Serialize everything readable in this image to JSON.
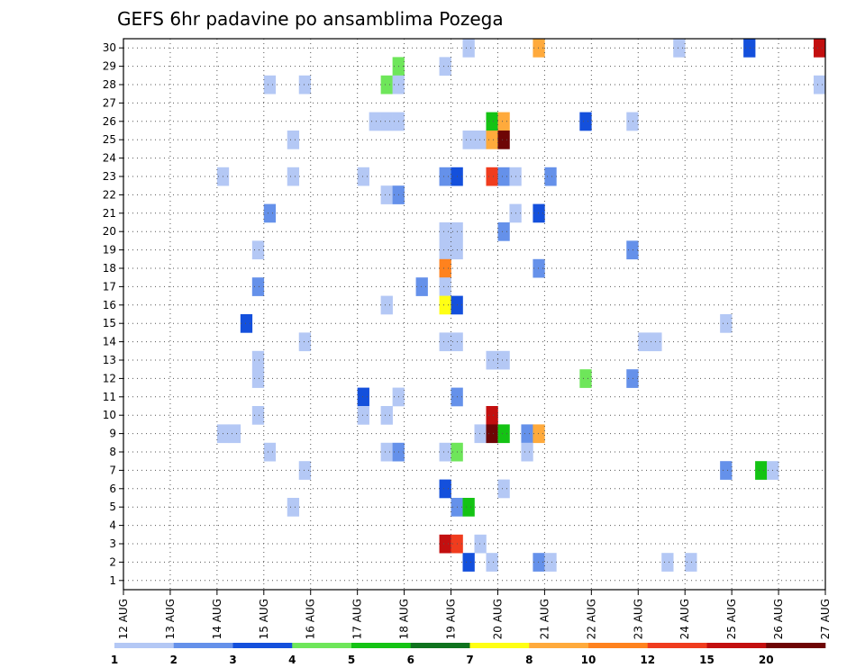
{
  "chart_data": {
    "type": "heatmap",
    "title": "GEFS 6hr padavine po ansamblima Pozega",
    "x_tick_labels": [
      "12 AUG",
      "13 AUG",
      "14 AUG",
      "15 AUG",
      "16 AUG",
      "17 AUG",
      "18 AUG",
      "19 AUG",
      "20 AUG",
      "21 AUG",
      "22 AUG",
      "23 AUG",
      "24 AUG",
      "25 AUG",
      "26 AUG",
      "27 AUG"
    ],
    "y_tick_labels": [
      "1",
      "2",
      "3",
      "4",
      "5",
      "6",
      "7",
      "8",
      "9",
      "10",
      "11",
      "12",
      "13",
      "14",
      "15",
      "16",
      "17",
      "18",
      "19",
      "20",
      "21",
      "22",
      "23",
      "24",
      "25",
      "26",
      "27",
      "28",
      "29",
      "30"
    ],
    "xlim_days": [
      0,
      15
    ],
    "ylim": [
      0.5,
      30.5
    ],
    "grid": true,
    "colorbar": {
      "labels": [
        "1",
        "2",
        "3",
        "4",
        "5",
        "6",
        "7",
        "8",
        "10",
        "12",
        "15",
        "20"
      ],
      "colors": [
        "#b4c8f5",
        "#6591ea",
        "#1450dc",
        "#6ee65a",
        "#14c314",
        "#0f731e",
        "#ffff14",
        "#ffaa3c",
        "#ff821e",
        "#f03c1e",
        "#c30f0f",
        "#6e0505"
      ]
    },
    "cells": [
      [
        7.25,
        30,
        0
      ],
      [
        8.75,
        30,
        7
      ],
      [
        11.75,
        30,
        0
      ],
      [
        13.25,
        30,
        2
      ],
      [
        14.75,
        30,
        10
      ],
      [
        5.75,
        29,
        3
      ],
      [
        6.75,
        29,
        0
      ],
      [
        3.0,
        28,
        0
      ],
      [
        3.75,
        28,
        0
      ],
      [
        5.5,
        28,
        3
      ],
      [
        5.75,
        28,
        0
      ],
      [
        14.75,
        28,
        0
      ],
      [
        5.25,
        26,
        0
      ],
      [
        5.5,
        26,
        0
      ],
      [
        5.75,
        26,
        0
      ],
      [
        7.75,
        26,
        4
      ],
      [
        8.0,
        26,
        7
      ],
      [
        9.75,
        26,
        2
      ],
      [
        10.75,
        26,
        0
      ],
      [
        3.5,
        25,
        0
      ],
      [
        7.25,
        25,
        0
      ],
      [
        7.5,
        25,
        0
      ],
      [
        7.75,
        25,
        7
      ],
      [
        8.0,
        25,
        11
      ],
      [
        2.0,
        23,
        0
      ],
      [
        3.5,
        23,
        0
      ],
      [
        5.0,
        23,
        0
      ],
      [
        6.75,
        23,
        1
      ],
      [
        7.0,
        23,
        2
      ],
      [
        7.75,
        23,
        9
      ],
      [
        8.0,
        23,
        1
      ],
      [
        8.25,
        23,
        0
      ],
      [
        9.0,
        23,
        1
      ],
      [
        5.5,
        22,
        0
      ],
      [
        5.75,
        22,
        1
      ],
      [
        3.0,
        21,
        1
      ],
      [
        8.25,
        21,
        0
      ],
      [
        8.75,
        21,
        2
      ],
      [
        6.75,
        20,
        0
      ],
      [
        7.0,
        20,
        0
      ],
      [
        8.0,
        20,
        1
      ],
      [
        6.75,
        19,
        0
      ],
      [
        7.0,
        19,
        0
      ],
      [
        2.75,
        19,
        0
      ],
      [
        10.75,
        19,
        1
      ],
      [
        6.75,
        18,
        8
      ],
      [
        8.75,
        18,
        1
      ],
      [
        2.75,
        17,
        1
      ],
      [
        6.25,
        17,
        1
      ],
      [
        6.75,
        17,
        0
      ],
      [
        5.5,
        16,
        0
      ],
      [
        6.75,
        16,
        6
      ],
      [
        7.0,
        16,
        2
      ],
      [
        2.5,
        15,
        2
      ],
      [
        12.75,
        15,
        0
      ],
      [
        3.75,
        14,
        0
      ],
      [
        6.75,
        14,
        0
      ],
      [
        7.0,
        14,
        0
      ],
      [
        11.0,
        14,
        0
      ],
      [
        11.25,
        14,
        0
      ],
      [
        2.75,
        13,
        0
      ],
      [
        7.75,
        13,
        0
      ],
      [
        8.0,
        13,
        0
      ],
      [
        2.75,
        12,
        0
      ],
      [
        9.75,
        12,
        3
      ],
      [
        10.75,
        12,
        1
      ],
      [
        5.0,
        11,
        2
      ],
      [
        5.75,
        11,
        0
      ],
      [
        7.0,
        11,
        1
      ],
      [
        2.75,
        10,
        0
      ],
      [
        5.0,
        10,
        0
      ],
      [
        5.5,
        10,
        0
      ],
      [
        7.75,
        10,
        10
      ],
      [
        2.0,
        9,
        0
      ],
      [
        2.25,
        9,
        0
      ],
      [
        7.5,
        9,
        0
      ],
      [
        7.75,
        9,
        11
      ],
      [
        8.0,
        9,
        4
      ],
      [
        8.5,
        9,
        1
      ],
      [
        8.75,
        9,
        7
      ],
      [
        3.0,
        8,
        0
      ],
      [
        5.5,
        8,
        0
      ],
      [
        5.75,
        8,
        1
      ],
      [
        6.75,
        8,
        0
      ],
      [
        7.0,
        8,
        3
      ],
      [
        8.5,
        8,
        0
      ],
      [
        3.75,
        7,
        0
      ],
      [
        12.75,
        7,
        1
      ],
      [
        13.5,
        7,
        4
      ],
      [
        13.75,
        7,
        0
      ],
      [
        6.75,
        6,
        2
      ],
      [
        8.0,
        6,
        0
      ],
      [
        3.5,
        5,
        0
      ],
      [
        7.0,
        5,
        1
      ],
      [
        7.25,
        5,
        4
      ],
      [
        6.75,
        3,
        10
      ],
      [
        7.0,
        3,
        9
      ],
      [
        7.5,
        3,
        0
      ],
      [
        7.25,
        2,
        2
      ],
      [
        7.75,
        2,
        0
      ],
      [
        8.75,
        2,
        1
      ],
      [
        9.0,
        2,
        0
      ],
      [
        11.5,
        2,
        0
      ],
      [
        12.0,
        2,
        0
      ]
    ]
  }
}
